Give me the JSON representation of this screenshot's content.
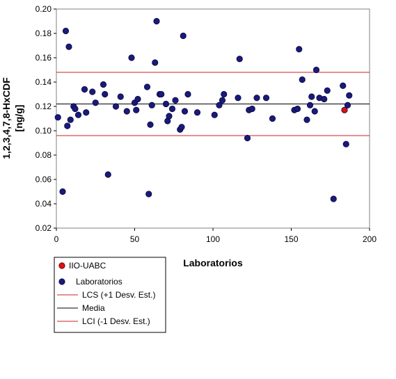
{
  "chart_data": {
    "type": "scatter",
    "xlabel": "Laboratorios",
    "ylabel": "1,2,3,4,7,8-HxCDF [ng/g]",
    "ylabel_lines": [
      "1,2,3,4,7,8-HxCDF",
      "[ng/g]"
    ],
    "xlim": [
      0,
      200
    ],
    "ylim": [
      0.02,
      0.2
    ],
    "x_ticks": [
      0,
      50,
      100,
      150,
      200
    ],
    "x_tick_labels": [
      "0",
      "50",
      "100",
      "150",
      "200"
    ],
    "y_ticks": [
      0.02,
      0.04,
      0.06,
      0.08,
      0.1,
      0.12,
      0.14,
      0.16,
      0.18,
      0.2
    ],
    "y_tick_labels": [
      "0.02",
      "0.04",
      "0.06",
      "0.08",
      "0.10",
      "0.12",
      "0.14",
      "0.16",
      "0.18",
      "0.20"
    ],
    "grid": false,
    "legend_position": "bottom-left",
    "series": [
      {
        "name": "IIO-UABC",
        "kind": "point",
        "color": "#dd1111",
        "points": [
          [
            184,
            0.117
          ]
        ]
      },
      {
        "name": "Laboratorios",
        "kind": "point",
        "color": "#1a1a7a",
        "points": [
          [
            1,
            0.111
          ],
          [
            4,
            0.05
          ],
          [
            6,
            0.182
          ],
          [
            7,
            0.104
          ],
          [
            8,
            0.169
          ],
          [
            9,
            0.109
          ],
          [
            11,
            0.12
          ],
          [
            12,
            0.118
          ],
          [
            14,
            0.113
          ],
          [
            18,
            0.134
          ],
          [
            19,
            0.115
          ],
          [
            23,
            0.132
          ],
          [
            25,
            0.123
          ],
          [
            30,
            0.138
          ],
          [
            31,
            0.13
          ],
          [
            33,
            0.064
          ],
          [
            38,
            0.12
          ],
          [
            41,
            0.128
          ],
          [
            45,
            0.116
          ],
          [
            48,
            0.16
          ],
          [
            50,
            0.123
          ],
          [
            51,
            0.117
          ],
          [
            52,
            0.126
          ],
          [
            58,
            0.136
          ],
          [
            59,
            0.048
          ],
          [
            60,
            0.105
          ],
          [
            61,
            0.121
          ],
          [
            63,
            0.156
          ],
          [
            64,
            0.19
          ],
          [
            66,
            0.13
          ],
          [
            67,
            0.13
          ],
          [
            70,
            0.122
          ],
          [
            71,
            0.108
          ],
          [
            72,
            0.112
          ],
          [
            74,
            0.118
          ],
          [
            76,
            0.125
          ],
          [
            79,
            0.101
          ],
          [
            80,
            0.103
          ],
          [
            81,
            0.178
          ],
          [
            82,
            0.116
          ],
          [
            84,
            0.13
          ],
          [
            90,
            0.115
          ],
          [
            101,
            0.113
          ],
          [
            104,
            0.121
          ],
          [
            106,
            0.125
          ],
          [
            107,
            0.13
          ],
          [
            116,
            0.127
          ],
          [
            117,
            0.159
          ],
          [
            122,
            0.094
          ],
          [
            123,
            0.117
          ],
          [
            125,
            0.118
          ],
          [
            128,
            0.127
          ],
          [
            134,
            0.127
          ],
          [
            138,
            0.11
          ],
          [
            152,
            0.117
          ],
          [
            154,
            0.118
          ],
          [
            155,
            0.167
          ],
          [
            157,
            0.142
          ],
          [
            160,
            0.109
          ],
          [
            162,
            0.121
          ],
          [
            163,
            0.128
          ],
          [
            165,
            0.116
          ],
          [
            166,
            0.15
          ],
          [
            168,
            0.127
          ],
          [
            171,
            0.126
          ],
          [
            173,
            0.133
          ],
          [
            177,
            0.044
          ],
          [
            183,
            0.137
          ],
          [
            185,
            0.089
          ],
          [
            186,
            0.121
          ],
          [
            187,
            0.129
          ]
        ]
      },
      {
        "name": "LCS (+1 Desv. Est.)",
        "kind": "hline",
        "color": "#cc2222",
        "y": 0.148
      },
      {
        "name": "Media",
        "kind": "hline",
        "color": "#000000",
        "y": 0.122
      },
      {
        "name": "LCI (-1 Desv. Est.)",
        "kind": "hline",
        "color": "#cc2222",
        "y": 0.096
      }
    ]
  }
}
